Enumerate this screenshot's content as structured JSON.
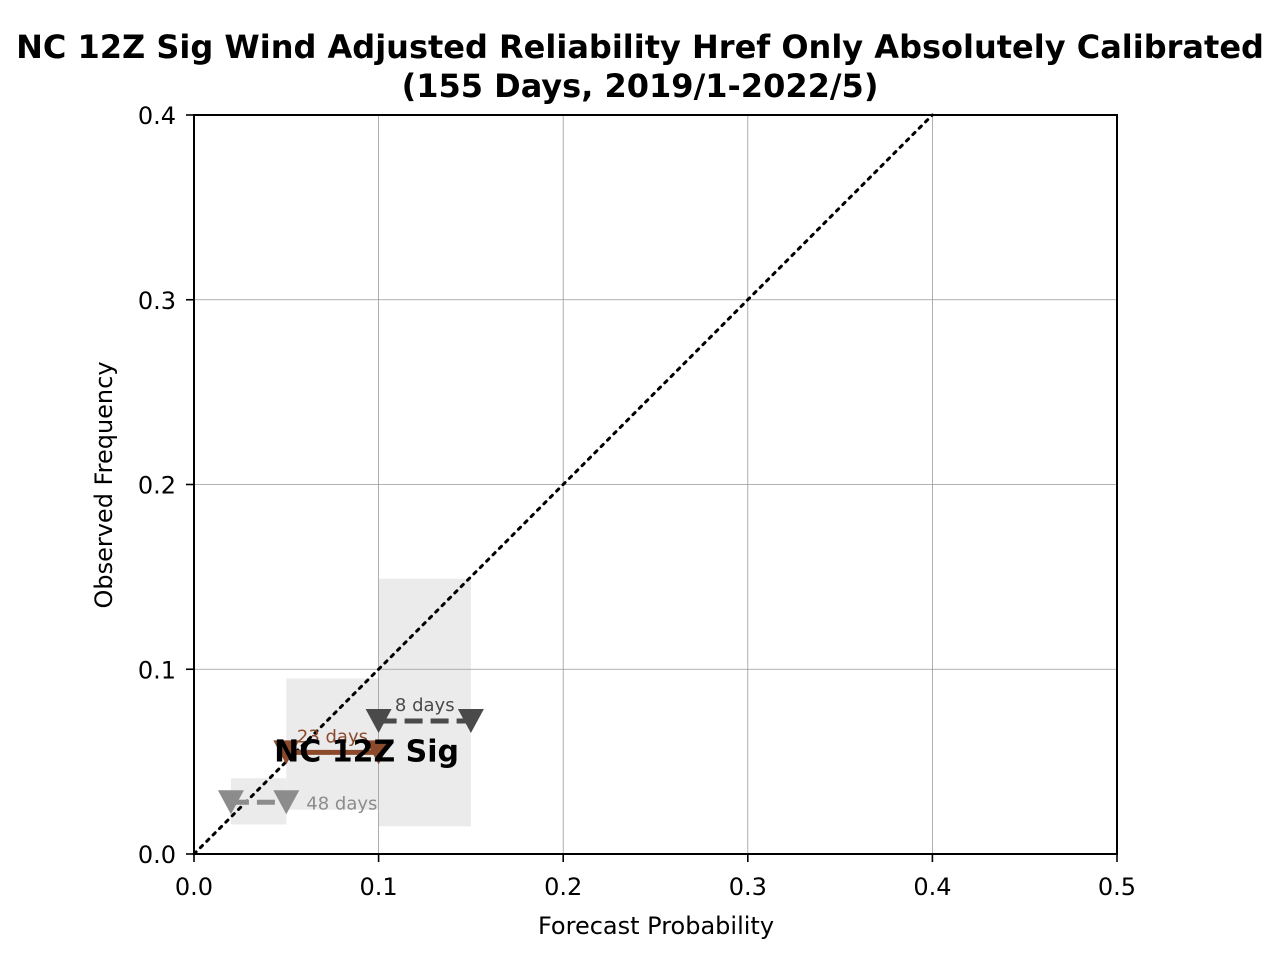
{
  "chart_data": {
    "type": "line",
    "title": "NC 12Z Sig Wind Adjusted Reliability Href Only Absolutely Calibrated",
    "subtitle": "(155 Days, 2019/1-2022/5)",
    "xlabel": "Forecast Probability",
    "ylabel": "Observed Frequency",
    "xlim": [
      0.0,
      0.5
    ],
    "ylim": [
      0.0,
      0.4
    ],
    "xticks": [
      "0.0",
      "0.1",
      "0.2",
      "0.3",
      "0.4",
      "0.5"
    ],
    "yticks": [
      "0.0",
      "0.1",
      "0.2",
      "0.3",
      "0.4"
    ],
    "grid": true,
    "reference_line": {
      "style": "dotted",
      "x": [
        0.0,
        0.4
      ],
      "y": [
        0.0,
        0.4
      ],
      "color": "#000000"
    },
    "inline_label": "NC 12Z Sig",
    "series": [
      {
        "label": "48 days",
        "color": "#8c8c8c",
        "linestyle": "dashed",
        "x": [
          0.02,
          0.05
        ],
        "y": [
          0.028,
          0.028
        ],
        "ci_box": {
          "x": [
            0.02,
            0.05
          ],
          "y": [
            0.016,
            0.041
          ]
        }
      },
      {
        "label": "23 days",
        "color": "#8b4a2c",
        "linestyle": "solid",
        "x": [
          0.05,
          0.1
        ],
        "y": [
          0.055,
          0.055
        ],
        "ci_box": {
          "x": [
            0.05,
            0.1
          ],
          "y": [
            0.024,
            0.095
          ]
        }
      },
      {
        "label": "8 days",
        "color": "#4a4a4a",
        "linestyle": "dashed",
        "x": [
          0.1,
          0.15
        ],
        "y": [
          0.072,
          0.072
        ],
        "ci_box": {
          "x": [
            0.1,
            0.15
          ],
          "y": [
            0.015,
            0.149
          ]
        }
      }
    ]
  }
}
